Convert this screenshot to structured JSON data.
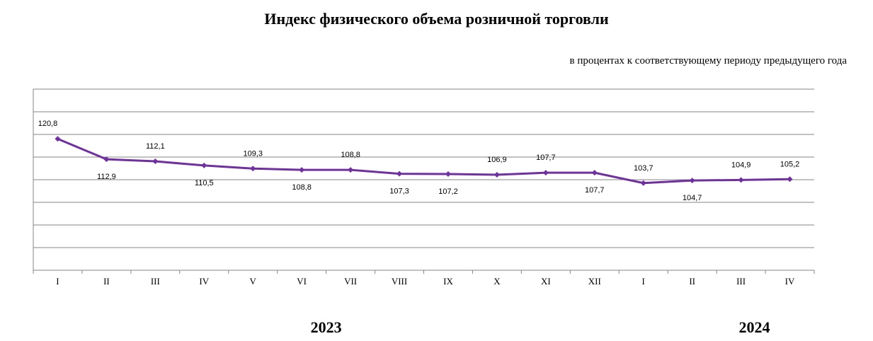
{
  "chart_data": {
    "type": "line",
    "title": "Индекс физического объема розничной торговли",
    "subtitle": "в процентах к соответствующему периоду предыдущего года",
    "xlabel": "",
    "ylabel": "",
    "categories": [
      "I",
      "II",
      "III",
      "IV",
      "V",
      "VI",
      "VII",
      "VIII",
      "IX",
      "X",
      "XI",
      "XII",
      "I",
      "II",
      "III",
      "IV"
    ],
    "values": [
      120.8,
      112.9,
      112.1,
      110.5,
      109.3,
      108.8,
      108.8,
      107.3,
      107.2,
      106.9,
      107.7,
      107.7,
      103.7,
      104.7,
      104.9,
      105.2
    ],
    "data_labels": [
      "120,8",
      "112,9",
      "112,1",
      "110,5",
      "109,3",
      "108,8",
      "108,8",
      "107,3",
      "107,2",
      "106,9",
      "107,7",
      "107,7",
      "103,7",
      "104,7",
      "104,9",
      "105,2"
    ],
    "label_positions": [
      "above",
      "below",
      "above",
      "below",
      "above",
      "below",
      "above",
      "below",
      "below",
      "above",
      "above",
      "below",
      "above",
      "below",
      "above",
      "above"
    ],
    "year_groups": [
      {
        "label": "2023",
        "first": 0,
        "last": 11
      },
      {
        "label": "2024",
        "first": 12,
        "last": 15
      }
    ],
    "ylim": [
      70,
      140
    ],
    "gridlines": 9,
    "grid": true,
    "legend": "none",
    "line_color": "#7030a0",
    "grid_color": "#868686"
  }
}
